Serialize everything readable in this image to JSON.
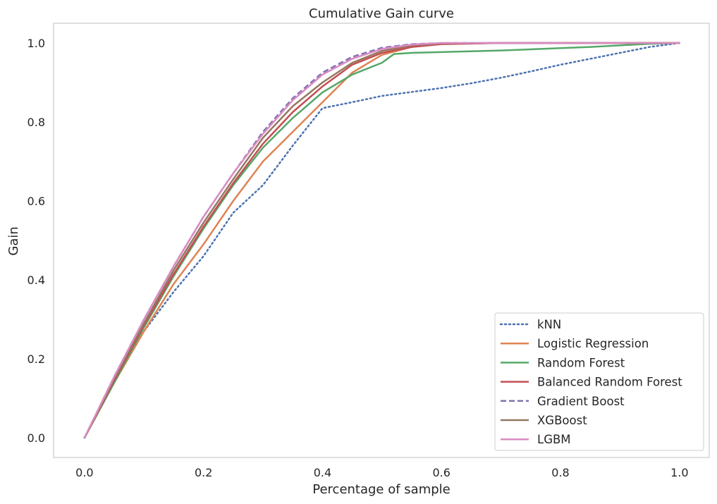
{
  "chart_data": {
    "type": "line",
    "title": "Cumulative Gain curve",
    "xlabel": "Percentage of sample",
    "ylabel": "Gain",
    "xlim": [
      -0.052,
      1.05
    ],
    "ylim": [
      -0.05,
      1.05
    ],
    "xticks": [
      0.0,
      0.2,
      0.4,
      0.6,
      0.8,
      1.0
    ],
    "yticks": [
      0.0,
      0.2,
      0.4,
      0.6,
      0.8,
      1.0
    ],
    "xtick_labels": [
      "0.0",
      "0.2",
      "0.4",
      "0.6",
      "0.8",
      "1.0"
    ],
    "ytick_labels": [
      "0.0",
      "0.2",
      "0.4",
      "0.6",
      "0.8",
      "1.0"
    ],
    "grid": false,
    "legend_position": "bottom-right",
    "series": [
      {
        "name": "kNN",
        "color": "#4c72b0",
        "dash": "dotted",
        "points": [
          [
            0,
            0
          ],
          [
            0.05,
            0.14
          ],
          [
            0.1,
            0.27
          ],
          [
            0.15,
            0.37
          ],
          [
            0.2,
            0.46
          ],
          [
            0.25,
            0.57
          ],
          [
            0.3,
            0.64
          ],
          [
            0.35,
            0.74
          ],
          [
            0.4,
            0.835
          ],
          [
            0.45,
            0.85
          ],
          [
            0.5,
            0.866
          ],
          [
            0.55,
            0.876
          ],
          [
            0.6,
            0.886
          ],
          [
            0.65,
            0.898
          ],
          [
            0.7,
            0.912
          ],
          [
            0.75,
            0.928
          ],
          [
            0.8,
            0.945
          ],
          [
            0.85,
            0.96
          ],
          [
            0.9,
            0.975
          ],
          [
            0.95,
            0.99
          ],
          [
            1.0,
            1.0
          ]
        ]
      },
      {
        "name": "Logistic Regression",
        "color": "#dd8452",
        "dash": "solid",
        "points": [
          [
            0,
            0
          ],
          [
            0.05,
            0.14
          ],
          [
            0.1,
            0.27
          ],
          [
            0.15,
            0.39
          ],
          [
            0.2,
            0.49
          ],
          [
            0.25,
            0.6
          ],
          [
            0.3,
            0.7
          ],
          [
            0.35,
            0.775
          ],
          [
            0.4,
            0.85
          ],
          [
            0.45,
            0.925
          ],
          [
            0.5,
            0.97
          ],
          [
            0.55,
            0.99
          ],
          [
            0.6,
            0.998
          ],
          [
            0.7,
            1.0
          ],
          [
            0.8,
            1.0
          ],
          [
            0.9,
            1.0
          ],
          [
            1.0,
            1.0
          ]
        ]
      },
      {
        "name": "Random Forest",
        "color": "#55a868",
        "dash": "solid",
        "points": [
          [
            0,
            0
          ],
          [
            0.05,
            0.14
          ],
          [
            0.1,
            0.28
          ],
          [
            0.15,
            0.41
          ],
          [
            0.2,
            0.53
          ],
          [
            0.25,
            0.64
          ],
          [
            0.3,
            0.735
          ],
          [
            0.35,
            0.81
          ],
          [
            0.4,
            0.875
          ],
          [
            0.45,
            0.92
          ],
          [
            0.5,
            0.95
          ],
          [
            0.52,
            0.972
          ],
          [
            0.55,
            0.975
          ],
          [
            0.6,
            0.977
          ],
          [
            0.65,
            0.979
          ],
          [
            0.7,
            0.981
          ],
          [
            0.75,
            0.984
          ],
          [
            0.8,
            0.987
          ],
          [
            0.85,
            0.99
          ],
          [
            0.9,
            0.994
          ],
          [
            0.95,
            0.998
          ],
          [
            1.0,
            1.0
          ]
        ]
      },
      {
        "name": "Balanced Random Forest",
        "color": "#c44e52",
        "dash": "solid",
        "points": [
          [
            0,
            0
          ],
          [
            0.05,
            0.145
          ],
          [
            0.1,
            0.285
          ],
          [
            0.15,
            0.415
          ],
          [
            0.2,
            0.535
          ],
          [
            0.25,
            0.645
          ],
          [
            0.3,
            0.745
          ],
          [
            0.35,
            0.825
          ],
          [
            0.4,
            0.89
          ],
          [
            0.45,
            0.945
          ],
          [
            0.5,
            0.975
          ],
          [
            0.55,
            0.99
          ],
          [
            0.6,
            0.997
          ],
          [
            0.7,
            1.0
          ],
          [
            0.8,
            1.0
          ],
          [
            0.9,
            1.0
          ],
          [
            1.0,
            1.0
          ]
        ]
      },
      {
        "name": "Gradient Boost",
        "color": "#8172b3",
        "dash": "dashed",
        "points": [
          [
            0,
            0
          ],
          [
            0.05,
            0.155
          ],
          [
            0.1,
            0.3
          ],
          [
            0.15,
            0.435
          ],
          [
            0.2,
            0.56
          ],
          [
            0.25,
            0.67
          ],
          [
            0.3,
            0.775
          ],
          [
            0.35,
            0.86
          ],
          [
            0.4,
            0.925
          ],
          [
            0.45,
            0.965
          ],
          [
            0.5,
            0.988
          ],
          [
            0.55,
            0.997
          ],
          [
            0.6,
            1.0
          ],
          [
            0.7,
            1.0
          ],
          [
            0.8,
            1.0
          ],
          [
            0.9,
            1.0
          ],
          [
            1.0,
            1.0
          ]
        ]
      },
      {
        "name": "XGBoost",
        "color": "#937860",
        "dash": "solid",
        "points": [
          [
            0,
            0
          ],
          [
            0.05,
            0.15
          ],
          [
            0.1,
            0.29
          ],
          [
            0.15,
            0.425
          ],
          [
            0.2,
            0.545
          ],
          [
            0.25,
            0.655
          ],
          [
            0.3,
            0.76
          ],
          [
            0.35,
            0.84
          ],
          [
            0.4,
            0.9
          ],
          [
            0.45,
            0.95
          ],
          [
            0.5,
            0.98
          ],
          [
            0.55,
            0.994
          ],
          [
            0.6,
            0.999
          ],
          [
            0.7,
            1.0
          ],
          [
            0.8,
            1.0
          ],
          [
            0.9,
            1.0
          ],
          [
            1.0,
            1.0
          ]
        ]
      },
      {
        "name": "LGBM",
        "color": "#da8bc3",
        "dash": "solid",
        "points": [
          [
            0,
            0
          ],
          [
            0.05,
            0.155
          ],
          [
            0.1,
            0.3
          ],
          [
            0.15,
            0.435
          ],
          [
            0.2,
            0.56
          ],
          [
            0.25,
            0.67
          ],
          [
            0.3,
            0.77
          ],
          [
            0.35,
            0.855
          ],
          [
            0.4,
            0.92
          ],
          [
            0.45,
            0.96
          ],
          [
            0.5,
            0.985
          ],
          [
            0.55,
            0.996
          ],
          [
            0.6,
            1.0
          ],
          [
            0.7,
            1.0
          ],
          [
            0.8,
            1.0
          ],
          [
            0.9,
            1.0
          ],
          [
            1.0,
            1.0
          ]
        ]
      }
    ]
  }
}
